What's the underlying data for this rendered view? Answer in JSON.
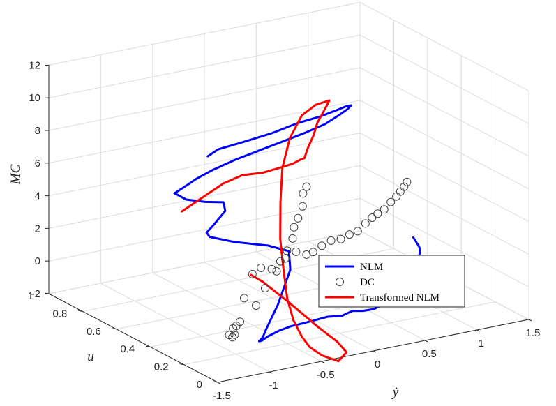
{
  "chart_data": {
    "type": "line3d",
    "title": "",
    "axes": {
      "x": {
        "label": "ẏ",
        "range": [
          -1.5,
          1.5
        ],
        "ticks": [
          "-1.5",
          "-1",
          "-0.5",
          "0",
          "0.5",
          "1",
          "1.5"
        ]
      },
      "y": {
        "label": "u",
        "range": [
          0,
          1
        ],
        "ticks": [
          "0",
          "0.2",
          "0.4",
          "0.6",
          "0.8",
          "1"
        ]
      },
      "z": {
        "label": "MC",
        "range": [
          -2,
          12
        ],
        "ticks": [
          "-2",
          "0",
          "2",
          "4",
          "6",
          "8",
          "10",
          "12"
        ]
      }
    },
    "grid": true,
    "legend": {
      "position": "bottom-right",
      "entries": [
        "NLM",
        "DC",
        "Transformed NLM"
      ]
    },
    "series": [
      {
        "name": "NLM",
        "color": "#0000ff",
        "style": "line",
        "points": [
          [
            0.0,
            0.98,
            4.6
          ],
          [
            0.1,
            0.98,
            4.9
          ],
          [
            0.3,
            0.97,
            5.1
          ],
          [
            0.6,
            0.97,
            5.3
          ],
          [
            0.85,
            0.97,
            5.6
          ],
          [
            1.05,
            0.96,
            5.8
          ],
          [
            1.22,
            0.96,
            6.0
          ],
          [
            1.3,
            0.96,
            6.1
          ],
          [
            1.35,
            0.96,
            6.1
          ],
          [
            1.3,
            0.95,
            6.0
          ],
          [
            1.2,
            0.94,
            5.8
          ],
          [
            1.05,
            0.93,
            5.5
          ],
          [
            0.85,
            0.92,
            5.3
          ],
          [
            0.6,
            0.91,
            5.1
          ],
          [
            0.35,
            0.9,
            4.9
          ],
          [
            0.1,
            0.88,
            4.8
          ],
          [
            -0.15,
            0.86,
            4.6
          ],
          [
            -0.35,
            0.83,
            4.5
          ],
          [
            -0.55,
            0.79,
            4.4
          ],
          [
            -0.68,
            0.76,
            4.4
          ],
          [
            -0.72,
            0.73,
            4.6
          ],
          [
            -0.68,
            0.69,
            4.4
          ],
          [
            -0.58,
            0.64,
            4.4
          ],
          [
            -0.5,
            0.58,
            4.6
          ],
          [
            -0.58,
            0.52,
            4.5
          ],
          [
            -0.82,
            0.44,
            4.4
          ],
          [
            -1.02,
            0.36,
            4.6
          ],
          [
            -1.12,
            0.28,
            4.9
          ],
          [
            -1.02,
            0.2,
            4.9
          ],
          [
            -0.85,
            0.1,
            5.0
          ],
          [
            -0.78,
            0.02,
            5.0
          ],
          [
            -0.8,
            0.0,
            4.0
          ],
          [
            -0.92,
            0.0,
            2.0
          ],
          [
            -1.0,
            0.02,
            0.5
          ],
          [
            -1.0,
            0.04,
            -0.1
          ],
          [
            -0.97,
            0.08,
            -0.6
          ],
          [
            -0.88,
            0.12,
            -0.9
          ],
          [
            -0.75,
            0.16,
            -1.0
          ],
          [
            -0.58,
            0.2,
            -1.1
          ],
          [
            -0.42,
            0.23,
            -1.2
          ],
          [
            -0.26,
            0.26,
            -1.4
          ],
          [
            -0.1,
            0.28,
            -1.5
          ],
          [
            0.05,
            0.3,
            -1.6
          ],
          [
            0.2,
            0.31,
            -1.8
          ],
          [
            0.32,
            0.32,
            -1.7
          ],
          [
            0.44,
            0.33,
            -1.9
          ],
          [
            0.56,
            0.34,
            -2.0
          ],
          [
            0.66,
            0.34,
            -1.8
          ],
          [
            0.78,
            0.35,
            -1.9
          ],
          [
            0.85,
            0.35,
            -1.7
          ],
          [
            0.92,
            0.34,
            -1.4
          ],
          [
            0.97,
            0.34,
            -0.5
          ],
          [
            1.0,
            0.35,
            -0.1
          ],
          [
            1.02,
            0.36,
            0.2
          ],
          [
            1.04,
            0.37,
            0.1
          ],
          [
            1.07,
            0.38,
            0.1
          ],
          [
            1.1,
            0.4,
            0.1
          ],
          [
            1.14,
            0.43,
            0.0
          ],
          [
            1.2,
            0.46,
            0.0
          ],
          [
            1.26,
            0.5,
            0.0
          ],
          [
            1.3,
            0.53,
            -0.1
          ],
          [
            1.32,
            0.56,
            0.0
          ],
          [
            1.33,
            0.58,
            0.1
          ]
        ]
      },
      {
        "name": "Transformed NLM",
        "color": "#ff0000",
        "style": "line",
        "points": [
          [
            -1.0,
            0.52,
            5.0
          ],
          [
            -0.8,
            0.52,
            5.6
          ],
          [
            -0.6,
            0.52,
            6.2
          ],
          [
            -0.4,
            0.53,
            6.4
          ],
          [
            -0.2,
            0.53,
            6.3
          ],
          [
            -0.05,
            0.54,
            6.3
          ],
          [
            0.1,
            0.54,
            6.4
          ],
          [
            0.2,
            0.55,
            6.5
          ],
          [
            0.28,
            0.58,
            6.3
          ],
          [
            0.38,
            0.62,
            6.6
          ],
          [
            0.5,
            0.66,
            7.0
          ],
          [
            0.6,
            0.7,
            7.4
          ],
          [
            0.7,
            0.73,
            7.7
          ],
          [
            0.8,
            0.76,
            8.0
          ],
          [
            0.83,
            0.77,
            8.1
          ],
          [
            0.7,
            0.77,
            8.0
          ],
          [
            0.55,
            0.76,
            7.6
          ],
          [
            0.4,
            0.74,
            6.5
          ],
          [
            0.28,
            0.71,
            5.0
          ],
          [
            0.18,
            0.66,
            3.3
          ],
          [
            0.08,
            0.6,
            1.5
          ],
          [
            0.0,
            0.53,
            0.0
          ],
          [
            -0.08,
            0.46,
            -1.2
          ],
          [
            -0.15,
            0.38,
            -2.0
          ],
          [
            -0.2,
            0.3,
            -2.5
          ],
          [
            -0.22,
            0.24,
            -2.8
          ],
          [
            -0.2,
            0.18,
            -3.0
          ],
          [
            -0.14,
            0.12,
            -3.1
          ],
          [
            -0.16,
            0.06,
            -2.2
          ],
          [
            -0.3,
            0.03,
            -1.2
          ],
          [
            -0.5,
            0.02,
            0.0
          ],
          [
            -0.75,
            0.03,
            1.7
          ],
          [
            -1.0,
            0.04,
            3.3
          ],
          [
            -1.1,
            0.05,
            3.8
          ]
        ]
      },
      {
        "name": "DC",
        "color": "#404040",
        "style": "marker",
        "points": [
          [
            -1.1,
            0.04,
            3.9
          ],
          [
            -1.0,
            0.05,
            4.1
          ],
          [
            -0.85,
            0.05,
            3.7
          ],
          [
            -0.75,
            0.06,
            4.3
          ],
          [
            -0.63,
            0.07,
            4.5
          ],
          [
            -0.53,
            0.07,
            4.2
          ],
          [
            -0.45,
            0.08,
            4.2
          ],
          [
            -0.35,
            0.09,
            4.4
          ],
          [
            -0.26,
            0.09,
            4.6
          ],
          [
            -0.15,
            0.1,
            4.5
          ],
          [
            -0.05,
            0.11,
            4.6
          ],
          [
            0.03,
            0.11,
            4.7
          ],
          [
            0.12,
            0.12,
            5.0
          ],
          [
            0.2,
            0.13,
            5.2
          ],
          [
            0.27,
            0.14,
            5.3
          ],
          [
            0.35,
            0.15,
            5.4
          ],
          [
            0.43,
            0.16,
            5.7
          ],
          [
            0.5,
            0.17,
            5.9
          ],
          [
            0.57,
            0.19,
            6.0
          ],
          [
            0.64,
            0.21,
            6.1
          ],
          [
            0.7,
            0.23,
            6.2
          ],
          [
            -1.0,
            0.15,
            1.7
          ],
          [
            -0.9,
            0.3,
            -1.5
          ],
          [
            -0.82,
            0.33,
            -1.9
          ],
          [
            -0.75,
            0.36,
            -2.0
          ],
          [
            -0.7,
            0.4,
            -1.9
          ],
          [
            -0.62,
            0.43,
            -2.0
          ],
          [
            -0.52,
            0.47,
            -2.1
          ],
          [
            -0.3,
            0.51,
            -1.6
          ],
          [
            -0.18,
            0.53,
            -0.8
          ],
          [
            -0.1,
            0.54,
            0.2
          ],
          [
            0.0,
            0.55,
            0.5
          ],
          [
            0.08,
            0.56,
            1.0
          ],
          [
            0.15,
            0.57,
            1.6
          ],
          [
            0.18,
            0.58,
            2.2
          ],
          [
            0.22,
            0.58,
            2.7
          ],
          [
            0.28,
            0.59,
            3.3
          ],
          [
            0.3,
            0.6,
            4.0
          ],
          [
            0.35,
            0.61,
            4.3
          ]
        ]
      }
    ]
  },
  "legend_labels": {
    "nlm": "NLM",
    "dc": "DC",
    "tnlm": "Transformed NLM"
  },
  "axis_labels": {
    "x": "ẏ",
    "y": "u",
    "z": "MC"
  }
}
